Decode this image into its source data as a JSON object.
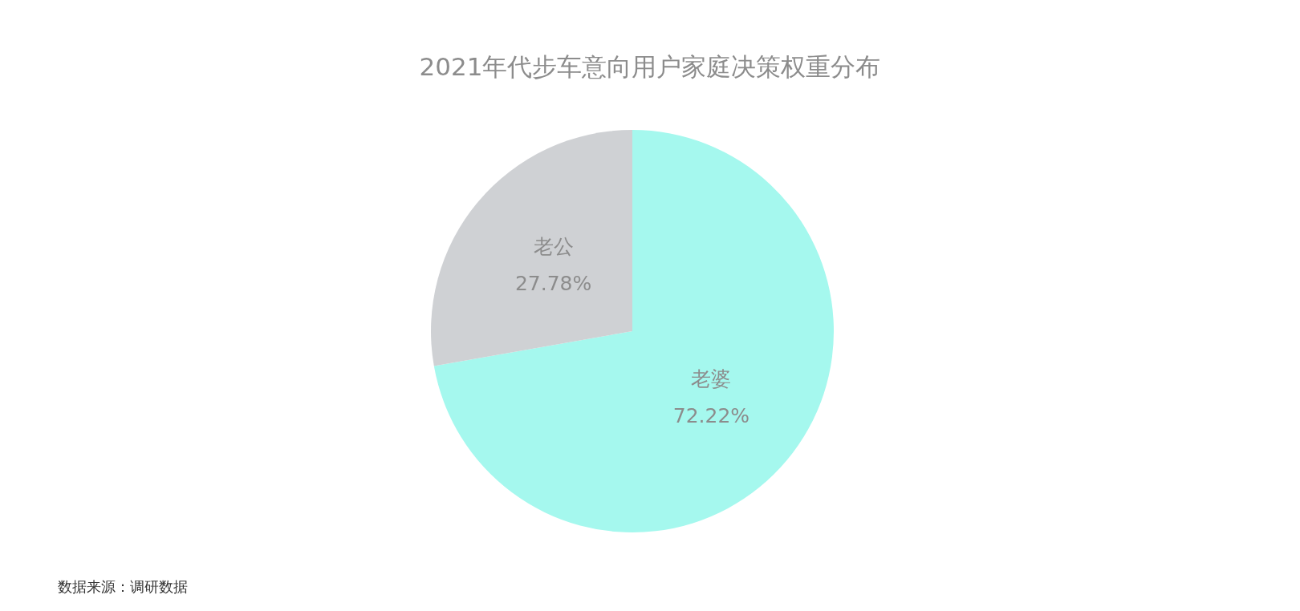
{
  "chart_data": {
    "type": "pie",
    "title": "2021年代步车意向用户家庭决策权重分布",
    "categories": [
      "老婆",
      "老公"
    ],
    "values": [
      72.22,
      27.78
    ],
    "value_labels": [
      "72.22%",
      "27.78%"
    ],
    "colors": [
      "#a5f8ee",
      "#cfd1d4"
    ],
    "annotations": [
      "数据来源：调研数据"
    ]
  }
}
